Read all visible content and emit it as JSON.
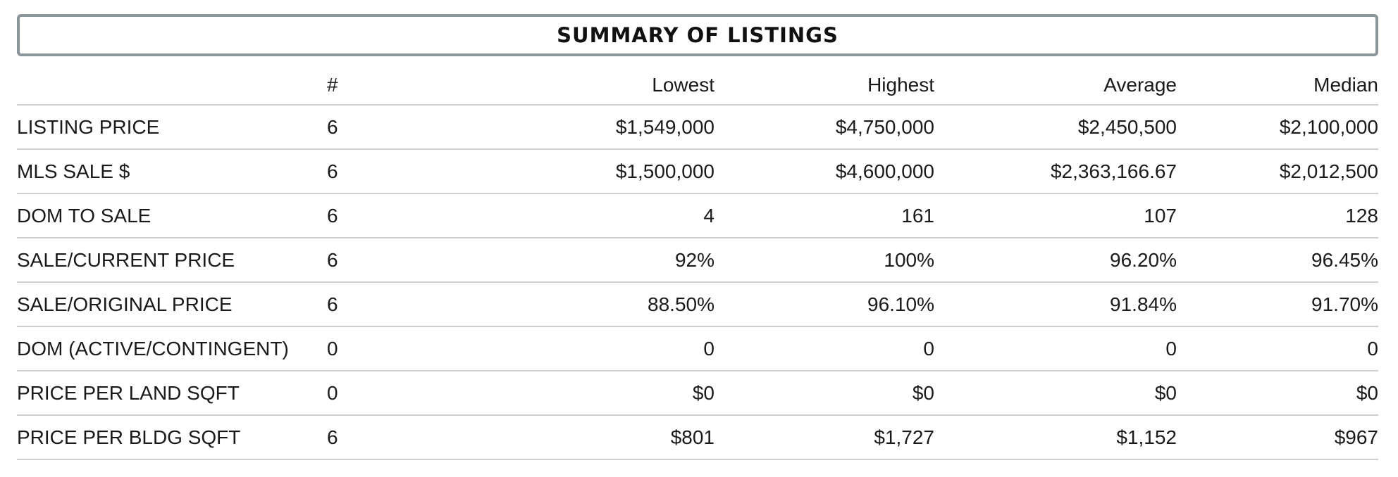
{
  "title": "SUMMARY OF LISTINGS",
  "columns": {
    "label": "",
    "count": "#",
    "lowest": "Lowest",
    "highest": "Highest",
    "average": "Average",
    "median": "Median"
  },
  "rows": [
    {
      "label": "LISTING PRICE",
      "count": "6",
      "lowest": "$1,549,000",
      "highest": "$4,750,000",
      "average": "$2,450,500",
      "median": "$2,100,000"
    },
    {
      "label": "MLS SALE $",
      "count": "6",
      "lowest": "$1,500,000",
      "highest": "$4,600,000",
      "average": "$2,363,166.67",
      "median": "$2,012,500"
    },
    {
      "label": "DOM TO SALE",
      "count": "6",
      "lowest": "4",
      "highest": "161",
      "average": "107",
      "median": "128"
    },
    {
      "label": "SALE/CURRENT PRICE",
      "count": "6",
      "lowest": "92%",
      "highest": "100%",
      "average": "96.20%",
      "median": "96.45%"
    },
    {
      "label": "SALE/ORIGINAL PRICE",
      "count": "6",
      "lowest": "88.50%",
      "highest": "96.10%",
      "average": "91.84%",
      "median": "91.70%"
    },
    {
      "label": "DOM (ACTIVE/CONTINGENT)",
      "count": "0",
      "lowest": "0",
      "highest": "0",
      "average": "0",
      "median": "0"
    },
    {
      "label": "PRICE PER LAND SQFT",
      "count": "0",
      "lowest": "$0",
      "highest": "$0",
      "average": "$0",
      "median": "$0"
    },
    {
      "label": "PRICE PER BLDG SQFT",
      "count": "6",
      "lowest": "$801",
      "highest": "$1,727",
      "average": "$1,152",
      "median": "$967"
    }
  ]
}
